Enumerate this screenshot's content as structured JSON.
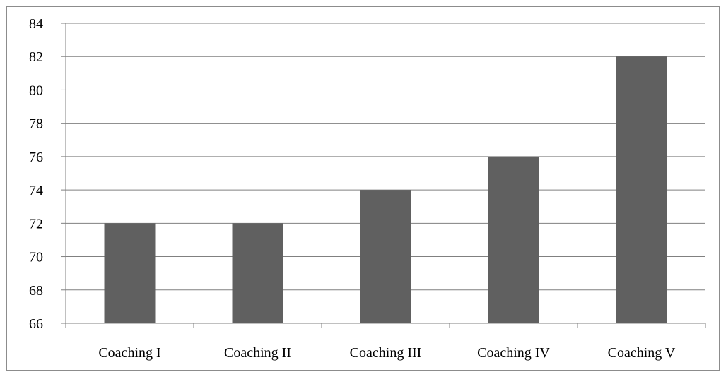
{
  "chart_data": {
    "type": "bar",
    "title": "",
    "xlabel": "",
    "ylabel": "",
    "categories": [
      "Coaching I",
      "Coaching II",
      "Coaching III",
      "Coaching IV",
      "Coaching V"
    ],
    "values": [
      72,
      72,
      74,
      76,
      82
    ],
    "ylim": [
      66,
      84
    ],
    "yticks": [
      66,
      68,
      70,
      72,
      74,
      76,
      78,
      80,
      82,
      84
    ],
    "grid": true,
    "legend": "none",
    "colors": {
      "bar": "#606060",
      "grid": "#808080",
      "axis": "#808080"
    }
  }
}
